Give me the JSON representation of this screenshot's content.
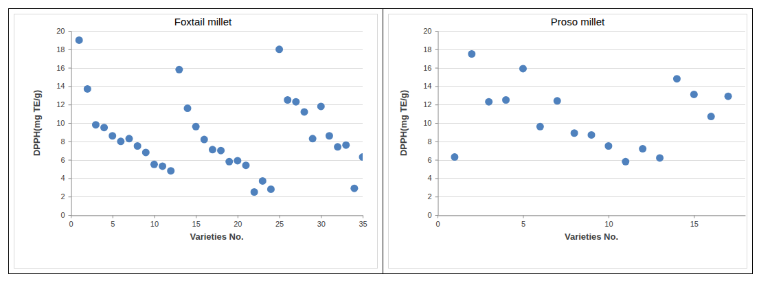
{
  "chart_data": [
    {
      "type": "scatter",
      "title": "Foxtail millet",
      "x_label": "Varieties No.",
      "y_label": "DPPH(mg TE/g)",
      "x": [
        1,
        2,
        3,
        4,
        5,
        6,
        7,
        8,
        9,
        10,
        11,
        12,
        13,
        14,
        15,
        16,
        17,
        18,
        19,
        20,
        21,
        22,
        23,
        24,
        25,
        26,
        27,
        28,
        29,
        30,
        31,
        32,
        33,
        34,
        35
      ],
      "values": [
        19.0,
        13.7,
        9.8,
        9.5,
        8.6,
        8.0,
        8.3,
        7.5,
        6.8,
        5.5,
        5.3,
        4.8,
        15.8,
        11.6,
        9.6,
        8.2,
        7.1,
        7.0,
        5.8,
        5.9,
        5.4,
        2.5,
        3.7,
        2.8,
        18.0,
        12.5,
        12.3,
        11.2,
        8.3,
        11.8,
        8.6,
        7.4,
        7.6,
        2.9,
        6.3
      ],
      "color": "#4f81bd",
      "marker": "circle",
      "xlim": [
        0,
        35
      ],
      "xticks": [
        0,
        5,
        10,
        15,
        20,
        25,
        30,
        35
      ],
      "ylim": [
        0,
        20
      ],
      "yticks": [
        0,
        2,
        4,
        6,
        8,
        10,
        12,
        14,
        16,
        18,
        20
      ],
      "grid": true
    },
    {
      "type": "scatter",
      "title": "Proso millet",
      "x_label": "Varieties No.",
      "y_label": "DPPH(mg TE/g)",
      "x": [
        1,
        2,
        3,
        4,
        5,
        6,
        7,
        8,
        9,
        10,
        11,
        12,
        13,
        14,
        15,
        16,
        17
      ],
      "values": [
        6.3,
        17.5,
        12.3,
        12.5,
        15.9,
        9.6,
        12.4,
        8.9,
        8.7,
        7.5,
        5.8,
        7.2,
        6.2,
        14.8,
        13.1,
        10.7,
        12.9
      ],
      "color": "#4f81bd",
      "marker": "circle",
      "xlim": [
        0,
        18
      ],
      "xticks": [
        0,
        5,
        10,
        15
      ],
      "ylim": [
        0,
        20
      ],
      "yticks": [
        0,
        2,
        4,
        6,
        8,
        10,
        12,
        14,
        16,
        18,
        20
      ],
      "grid": true
    }
  ]
}
